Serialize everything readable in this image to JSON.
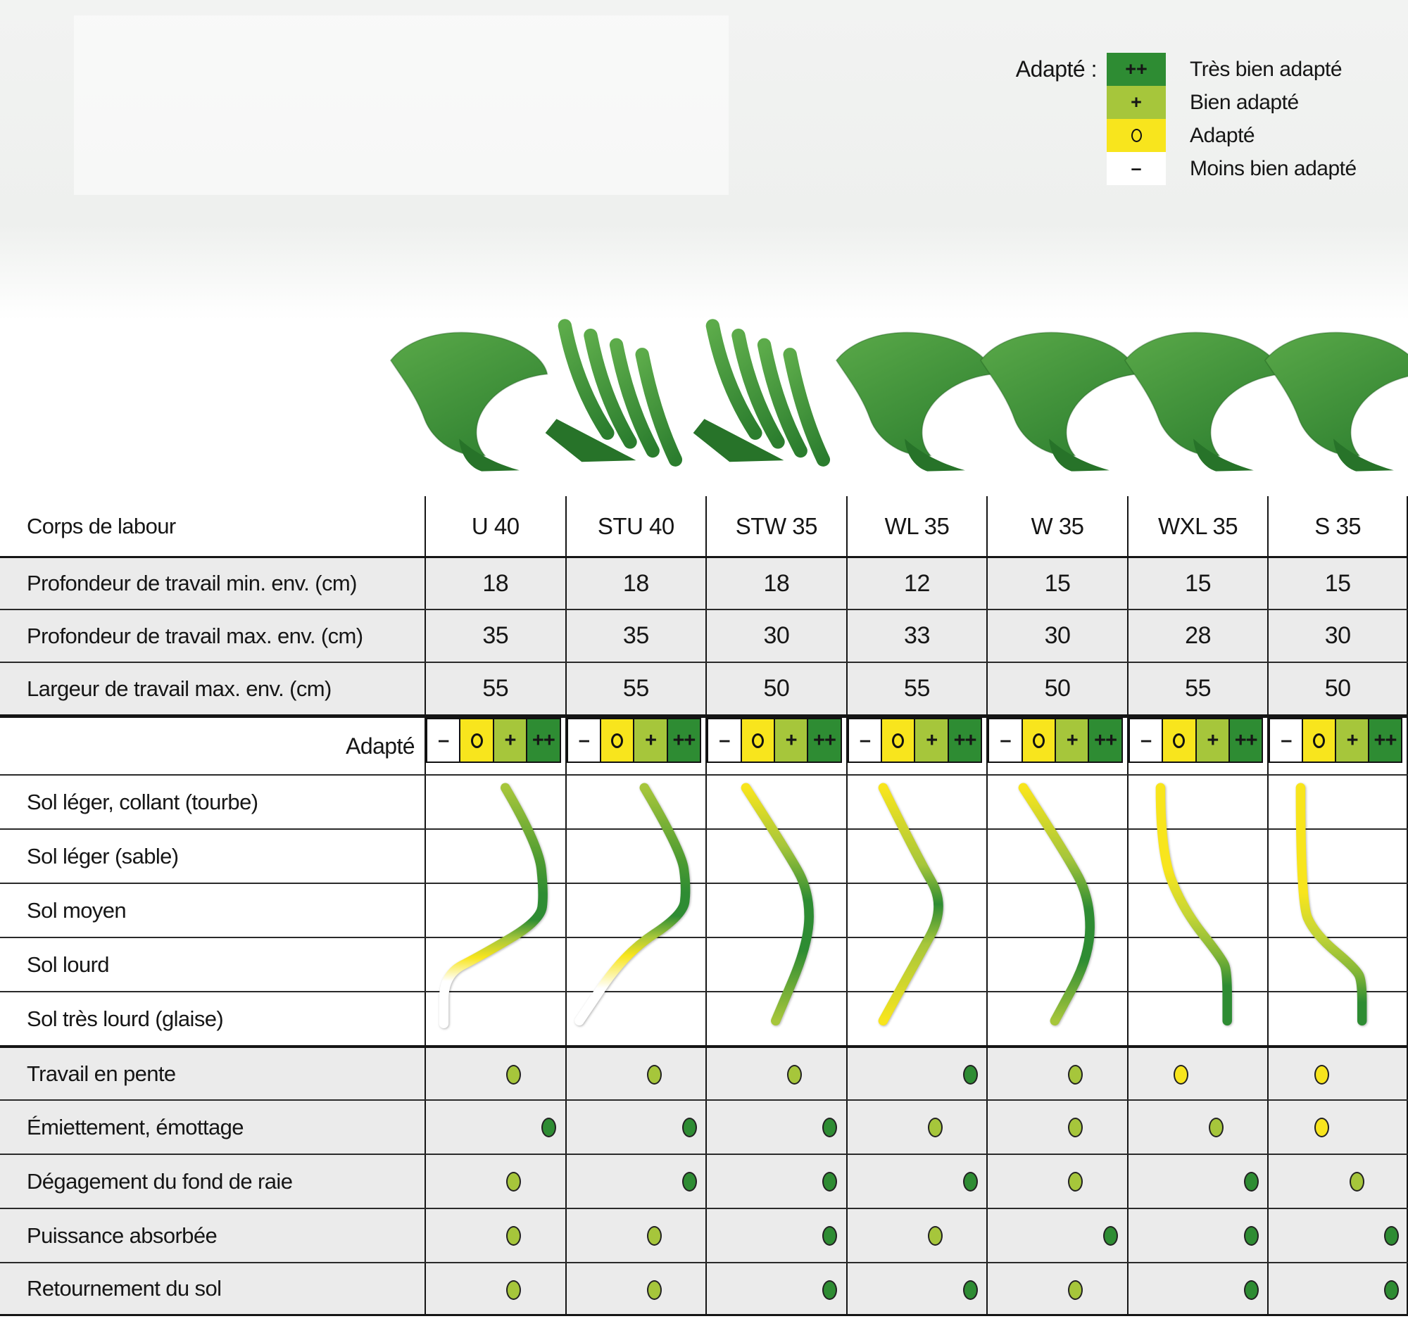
{
  "legend": {
    "title": "Adapté :",
    "items": [
      {
        "symbol": "++",
        "label": "Très bien adapté",
        "color": "#2e8c33"
      },
      {
        "symbol": "+",
        "label": "Bien adapté",
        "color": "#a6c63b"
      },
      {
        "symbol": "o",
        "label": "Adapté",
        "color": "#f8e51d"
      },
      {
        "symbol": "–",
        "label": "Moins bien adapté",
        "color": "#ffffff"
      }
    ]
  },
  "plows": [
    {
      "name": "U 40",
      "type": "solid"
    },
    {
      "name": "STU 40",
      "type": "slatted"
    },
    {
      "name": "STW 35",
      "type": "slatted"
    },
    {
      "name": "WL 35",
      "type": "solid"
    },
    {
      "name": "W 35",
      "type": "solid"
    },
    {
      "name": "WXL 35",
      "type": "solid"
    },
    {
      "name": "S 35",
      "type": "solid"
    }
  ],
  "table": {
    "corner_label": "Corps de labour",
    "columns": [
      "U 40",
      "STU 40",
      "STW 35",
      "WL 35",
      "W 35",
      "WXL 35",
      "S 35"
    ],
    "spec_rows": [
      {
        "label": "Profondeur de travail min. env. (cm)",
        "values": [
          "18",
          "18",
          "18",
          "12",
          "15",
          "15",
          "15"
        ]
      },
      {
        "label": "Profondeur de travail max. env. (cm)",
        "values": [
          "35",
          "35",
          "30",
          "33",
          "30",
          "28",
          "30"
        ]
      },
      {
        "label": "Largeur de travail max. env. (cm)",
        "values": [
          "55",
          "55",
          "50",
          "55",
          "50",
          "55",
          "50"
        ]
      }
    ],
    "adapte_label": "Adapté",
    "adapte_scale": [
      "–",
      "o",
      "+",
      "++"
    ],
    "soil_rows": [
      "Sol léger, collant (tourbe)",
      "Sol léger (sable)",
      "Sol moyen",
      "Sol lourd",
      "Sol très lourd (glaise)"
    ],
    "soil_curves": [
      {
        "column": "U 40",
        "ratings_by_soil": [
          "+",
          "++",
          "++",
          "o",
          "–"
        ],
        "points": [
          [
            2.3,
            0.25
          ],
          [
            3.25,
            1.3
          ],
          [
            3.4,
            2.2
          ],
          [
            3.3,
            2.7
          ],
          [
            1.6,
            3.35
          ],
          [
            0.55,
            3.7
          ],
          [
            0.55,
            4.6
          ]
        ],
        "stops": [
          [
            0,
            "#a6c63b"
          ],
          [
            0.3,
            "#4f9c31"
          ],
          [
            0.45,
            "#2e8c33"
          ],
          [
            0.56,
            "#2e8c33"
          ],
          [
            0.64,
            "#a6c63b"
          ],
          [
            0.72,
            "#f8e51d"
          ],
          [
            0.82,
            "#ffffff"
          ],
          [
            1,
            "#ffffff"
          ]
        ]
      },
      {
        "column": "STU 40",
        "ratings_by_soil": [
          "+",
          "++",
          "++",
          "o",
          "–"
        ],
        "points": [
          [
            2.25,
            0.25
          ],
          [
            3.3,
            1.4
          ],
          [
            3.45,
            2.1
          ],
          [
            3.35,
            2.6
          ],
          [
            1.7,
            3.3
          ],
          [
            0.4,
            4.55
          ]
        ],
        "stops": [
          [
            0,
            "#a6c63b"
          ],
          [
            0.3,
            "#4f9c31"
          ],
          [
            0.45,
            "#2e8c33"
          ],
          [
            0.55,
            "#2e8c33"
          ],
          [
            0.64,
            "#a6c63b"
          ],
          [
            0.72,
            "#f8e51d"
          ],
          [
            0.86,
            "#ffffff"
          ],
          [
            1,
            "#ffffff"
          ]
        ]
      },
      {
        "column": "STW 35",
        "ratings_by_soil": [
          "o",
          "+",
          "++",
          "++",
          "+"
        ],
        "points": [
          [
            1.15,
            0.25
          ],
          [
            2.3,
            1.4
          ],
          [
            2.95,
            2.15
          ],
          [
            2.95,
            3.1
          ],
          [
            2.0,
            4.55
          ]
        ],
        "stops": [
          [
            0,
            "#f8e51d"
          ],
          [
            0.25,
            "#a6c63b"
          ],
          [
            0.48,
            "#2e8c33"
          ],
          [
            0.7,
            "#2e8c33"
          ],
          [
            1,
            "#a6c63b"
          ]
        ]
      },
      {
        "column": "WL 35",
        "ratings_by_soil": [
          "o",
          "+",
          "++",
          "+",
          "o"
        ],
        "points": [
          [
            1.05,
            0.25
          ],
          [
            2.0,
            1.5
          ],
          [
            2.85,
            2.45
          ],
          [
            1.9,
            3.55
          ],
          [
            1.05,
            4.55
          ]
        ],
        "stops": [
          [
            0,
            "#f8e51d"
          ],
          [
            0.33,
            "#a6c63b"
          ],
          [
            0.5,
            "#2e8c33"
          ],
          [
            0.67,
            "#a6c63b"
          ],
          [
            1,
            "#f8e51d"
          ]
        ]
      },
      {
        "column": "W 35",
        "ratings_by_soil": [
          "o",
          "+",
          "++",
          "++",
          "+"
        ],
        "points": [
          [
            1.05,
            0.25
          ],
          [
            2.3,
            1.5
          ],
          [
            2.95,
            2.3
          ],
          [
            2.95,
            3.35
          ],
          [
            1.95,
            4.55
          ]
        ],
        "stops": [
          [
            0,
            "#f8e51d"
          ],
          [
            0.3,
            "#a6c63b"
          ],
          [
            0.52,
            "#2e8c33"
          ],
          [
            0.74,
            "#2e8c33"
          ],
          [
            1,
            "#a6c63b"
          ]
        ]
      },
      {
        "column": "WXL 35",
        "ratings_by_soil": [
          "o",
          "o",
          "o/+",
          "+",
          "++"
        ],
        "points": [
          [
            0.95,
            0.25
          ],
          [
            0.95,
            1.45
          ],
          [
            1.6,
            2.5
          ],
          [
            2.7,
            3.4
          ],
          [
            2.85,
            3.65
          ],
          [
            2.85,
            4.55
          ]
        ],
        "stops": [
          [
            0,
            "#f8e51d"
          ],
          [
            0.35,
            "#f8e51d"
          ],
          [
            0.55,
            "#c4d537"
          ],
          [
            0.72,
            "#7fb437"
          ],
          [
            0.85,
            "#2e8c33"
          ],
          [
            1,
            "#2e8c33"
          ]
        ]
      },
      {
        "column": "S 35",
        "ratings_by_soil": [
          "o",
          "o",
          "o",
          "+",
          "++"
        ],
        "points": [
          [
            0.95,
            0.25
          ],
          [
            0.95,
            2.35
          ],
          [
            1.35,
            2.95
          ],
          [
            2.55,
            3.6
          ],
          [
            2.7,
            3.85
          ],
          [
            2.7,
            4.55
          ]
        ],
        "stops": [
          [
            0,
            "#f8e51d"
          ],
          [
            0.45,
            "#f8e51d"
          ],
          [
            0.63,
            "#c4d537"
          ],
          [
            0.8,
            "#7fb437"
          ],
          [
            0.92,
            "#2e8c33"
          ],
          [
            1,
            "#2e8c33"
          ]
        ]
      }
    ],
    "attribute_rows": [
      {
        "label": "Travail en pente",
        "ratings": [
          "+",
          "+",
          "+",
          "++",
          "+",
          "o",
          "o"
        ]
      },
      {
        "label": "Émiettement, émottage",
        "ratings": [
          "++",
          "++",
          "++",
          "+",
          "+",
          "+",
          "o"
        ]
      },
      {
        "label": "Dégagement du fond de raie",
        "ratings": [
          "+",
          "++",
          "++",
          "++",
          "+",
          "++",
          "+"
        ]
      },
      {
        "label": "Puissance absorbée",
        "ratings": [
          "+",
          "+",
          "++",
          "+",
          "++",
          "++",
          "++"
        ]
      },
      {
        "label": "Retournement du sol",
        "ratings": [
          "+",
          "+",
          "++",
          "++",
          "+",
          "++",
          "++"
        ]
      }
    ]
  },
  "colors": {
    "very_good": "#2e8c33",
    "good": "#a6c63b",
    "ok": "#f8e51d",
    "less": "#ffffff",
    "row_bg": "#ebebeb",
    "grid": "#151515",
    "plow_light": "#5cab4a",
    "plow_dark": "#2b7d2e"
  }
}
